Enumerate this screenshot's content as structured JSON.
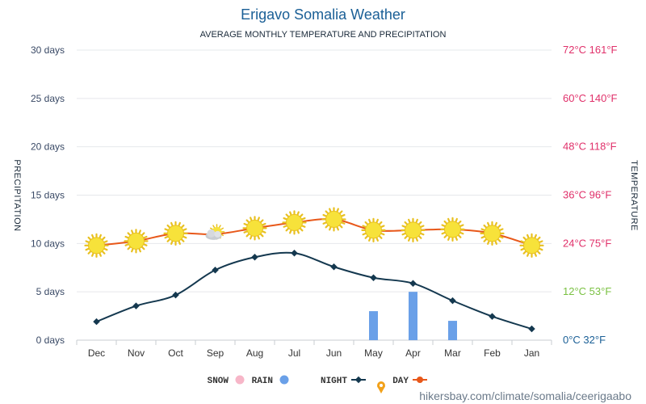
{
  "title": "Erigavo Somalia Weather",
  "subtitle": "AVERAGE MONTHLY TEMPERATURE AND PRECIPITATION",
  "y_left_label": "PRECIPITATION",
  "y_right_label": "TEMPERATURE",
  "left_ticks": [
    "30 days",
    "25 days",
    "20 days",
    "15 days",
    "10 days",
    "5 days",
    "0 days"
  ],
  "right_ticks": [
    {
      "text": "72°C 161°F",
      "color": "#e0306a"
    },
    {
      "text": "60°C 140°F",
      "color": "#e0306a"
    },
    {
      "text": "48°C 118°F",
      "color": "#e0306a"
    },
    {
      "text": "36°C 96°F",
      "color": "#e0306a"
    },
    {
      "text": "24°C 75°F",
      "color": "#e0306a"
    },
    {
      "text": "12°C 53°F",
      "color": "#7ac142"
    },
    {
      "text": "0°C 32°F",
      "color": "#1a5f96"
    }
  ],
  "legend": [
    {
      "label": "DAY",
      "color": "#e8581a",
      "icon": "line-dot"
    },
    {
      "label": "NIGHT",
      "color": "#14384f",
      "icon": "line-diamond"
    },
    {
      "label": "RAIN",
      "color": "#6aa0e8",
      "icon": "circle"
    },
    {
      "label": "SNOW",
      "color": "#f7b6c8",
      "icon": "circle"
    }
  ],
  "footer_text": "hikersbay.com/climate/somalia/ceerigaabo",
  "chart_data": {
    "type": "line",
    "categories": [
      "Jan",
      "Feb",
      "Mar",
      "Apr",
      "May",
      "Jun",
      "Jul",
      "Aug",
      "Sep",
      "Oct",
      "Nov",
      "Dec"
    ],
    "x_order": "reversed",
    "day_weather_icons": [
      "sun",
      "sun",
      "sun",
      "sun",
      "sun",
      "sun",
      "sun",
      "sun",
      "partly-cloudy",
      "sun",
      "sun",
      "sun"
    ],
    "series": [
      {
        "name": "DAY",
        "axis": "temperature_c",
        "color": "#e8581a",
        "values": [
          23.5,
          26.5,
          27.5,
          27.3,
          27.3,
          30.0,
          29.2,
          27.8,
          26.3,
          26.5,
          24.6,
          23.5
        ]
      },
      {
        "name": "NIGHT",
        "axis": "temperature_c",
        "color": "#14384f",
        "values": [
          2.8,
          5.9,
          9.8,
          14.1,
          15.5,
          18.2,
          21.6,
          20.6,
          17.4,
          11.2,
          8.5,
          4.6
        ]
      },
      {
        "name": "RAIN",
        "axis": "days",
        "type": "bar",
        "color": "#6aa0e8",
        "values": [
          0,
          0,
          2.0,
          5.0,
          3.0,
          0,
          0,
          0,
          0,
          0,
          0,
          0
        ]
      },
      {
        "name": "SNOW",
        "axis": "days",
        "type": "bar",
        "color": "#f7b6c8",
        "values": [
          0,
          0,
          0,
          0,
          0,
          0,
          0,
          0,
          0,
          0,
          0,
          0
        ]
      }
    ],
    "left_axis": {
      "label": "PRECIPITATION",
      "ylim": [
        0,
        30
      ],
      "unit": "days"
    },
    "right_axis": {
      "label": "TEMPERATURE",
      "ylim": [
        0,
        72
      ],
      "unit": "°C"
    },
    "grid": true,
    "legend_position": "bottom"
  }
}
